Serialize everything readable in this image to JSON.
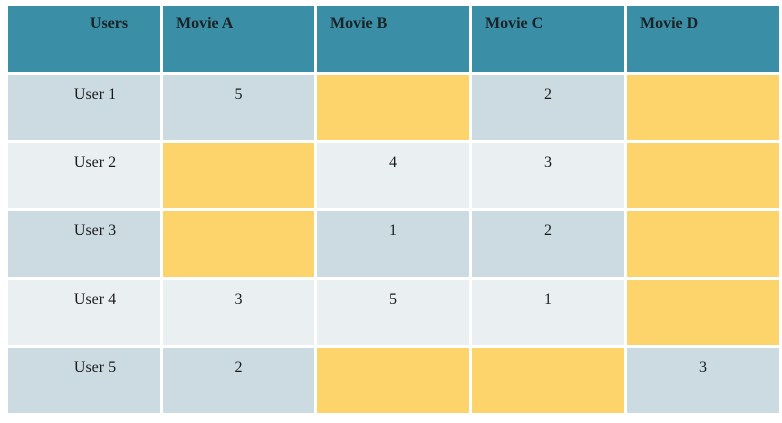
{
  "chart_data": {
    "type": "table",
    "columns": [
      "Users",
      "Movie A",
      "Movie B",
      "Movie C",
      "Movie D"
    ],
    "rows": [
      {
        "user": "User 1",
        "ratings": [
          "5",
          "",
          "2",
          ""
        ]
      },
      {
        "user": "User 2",
        "ratings": [
          "",
          "4",
          "3",
          ""
        ]
      },
      {
        "user": "User 3",
        "ratings": [
          "",
          "1",
          "2",
          ""
        ]
      },
      {
        "user": "User 4",
        "ratings": [
          "3",
          "5",
          "1",
          ""
        ]
      },
      {
        "user": "User 5",
        "ratings": [
          "2",
          "",
          "",
          "3"
        ]
      }
    ],
    "colors": {
      "header": "#3a8fa6",
      "row_odd": "#ccdbe2",
      "row_even": "#eaeff2",
      "missing": "#fdd46b"
    }
  }
}
